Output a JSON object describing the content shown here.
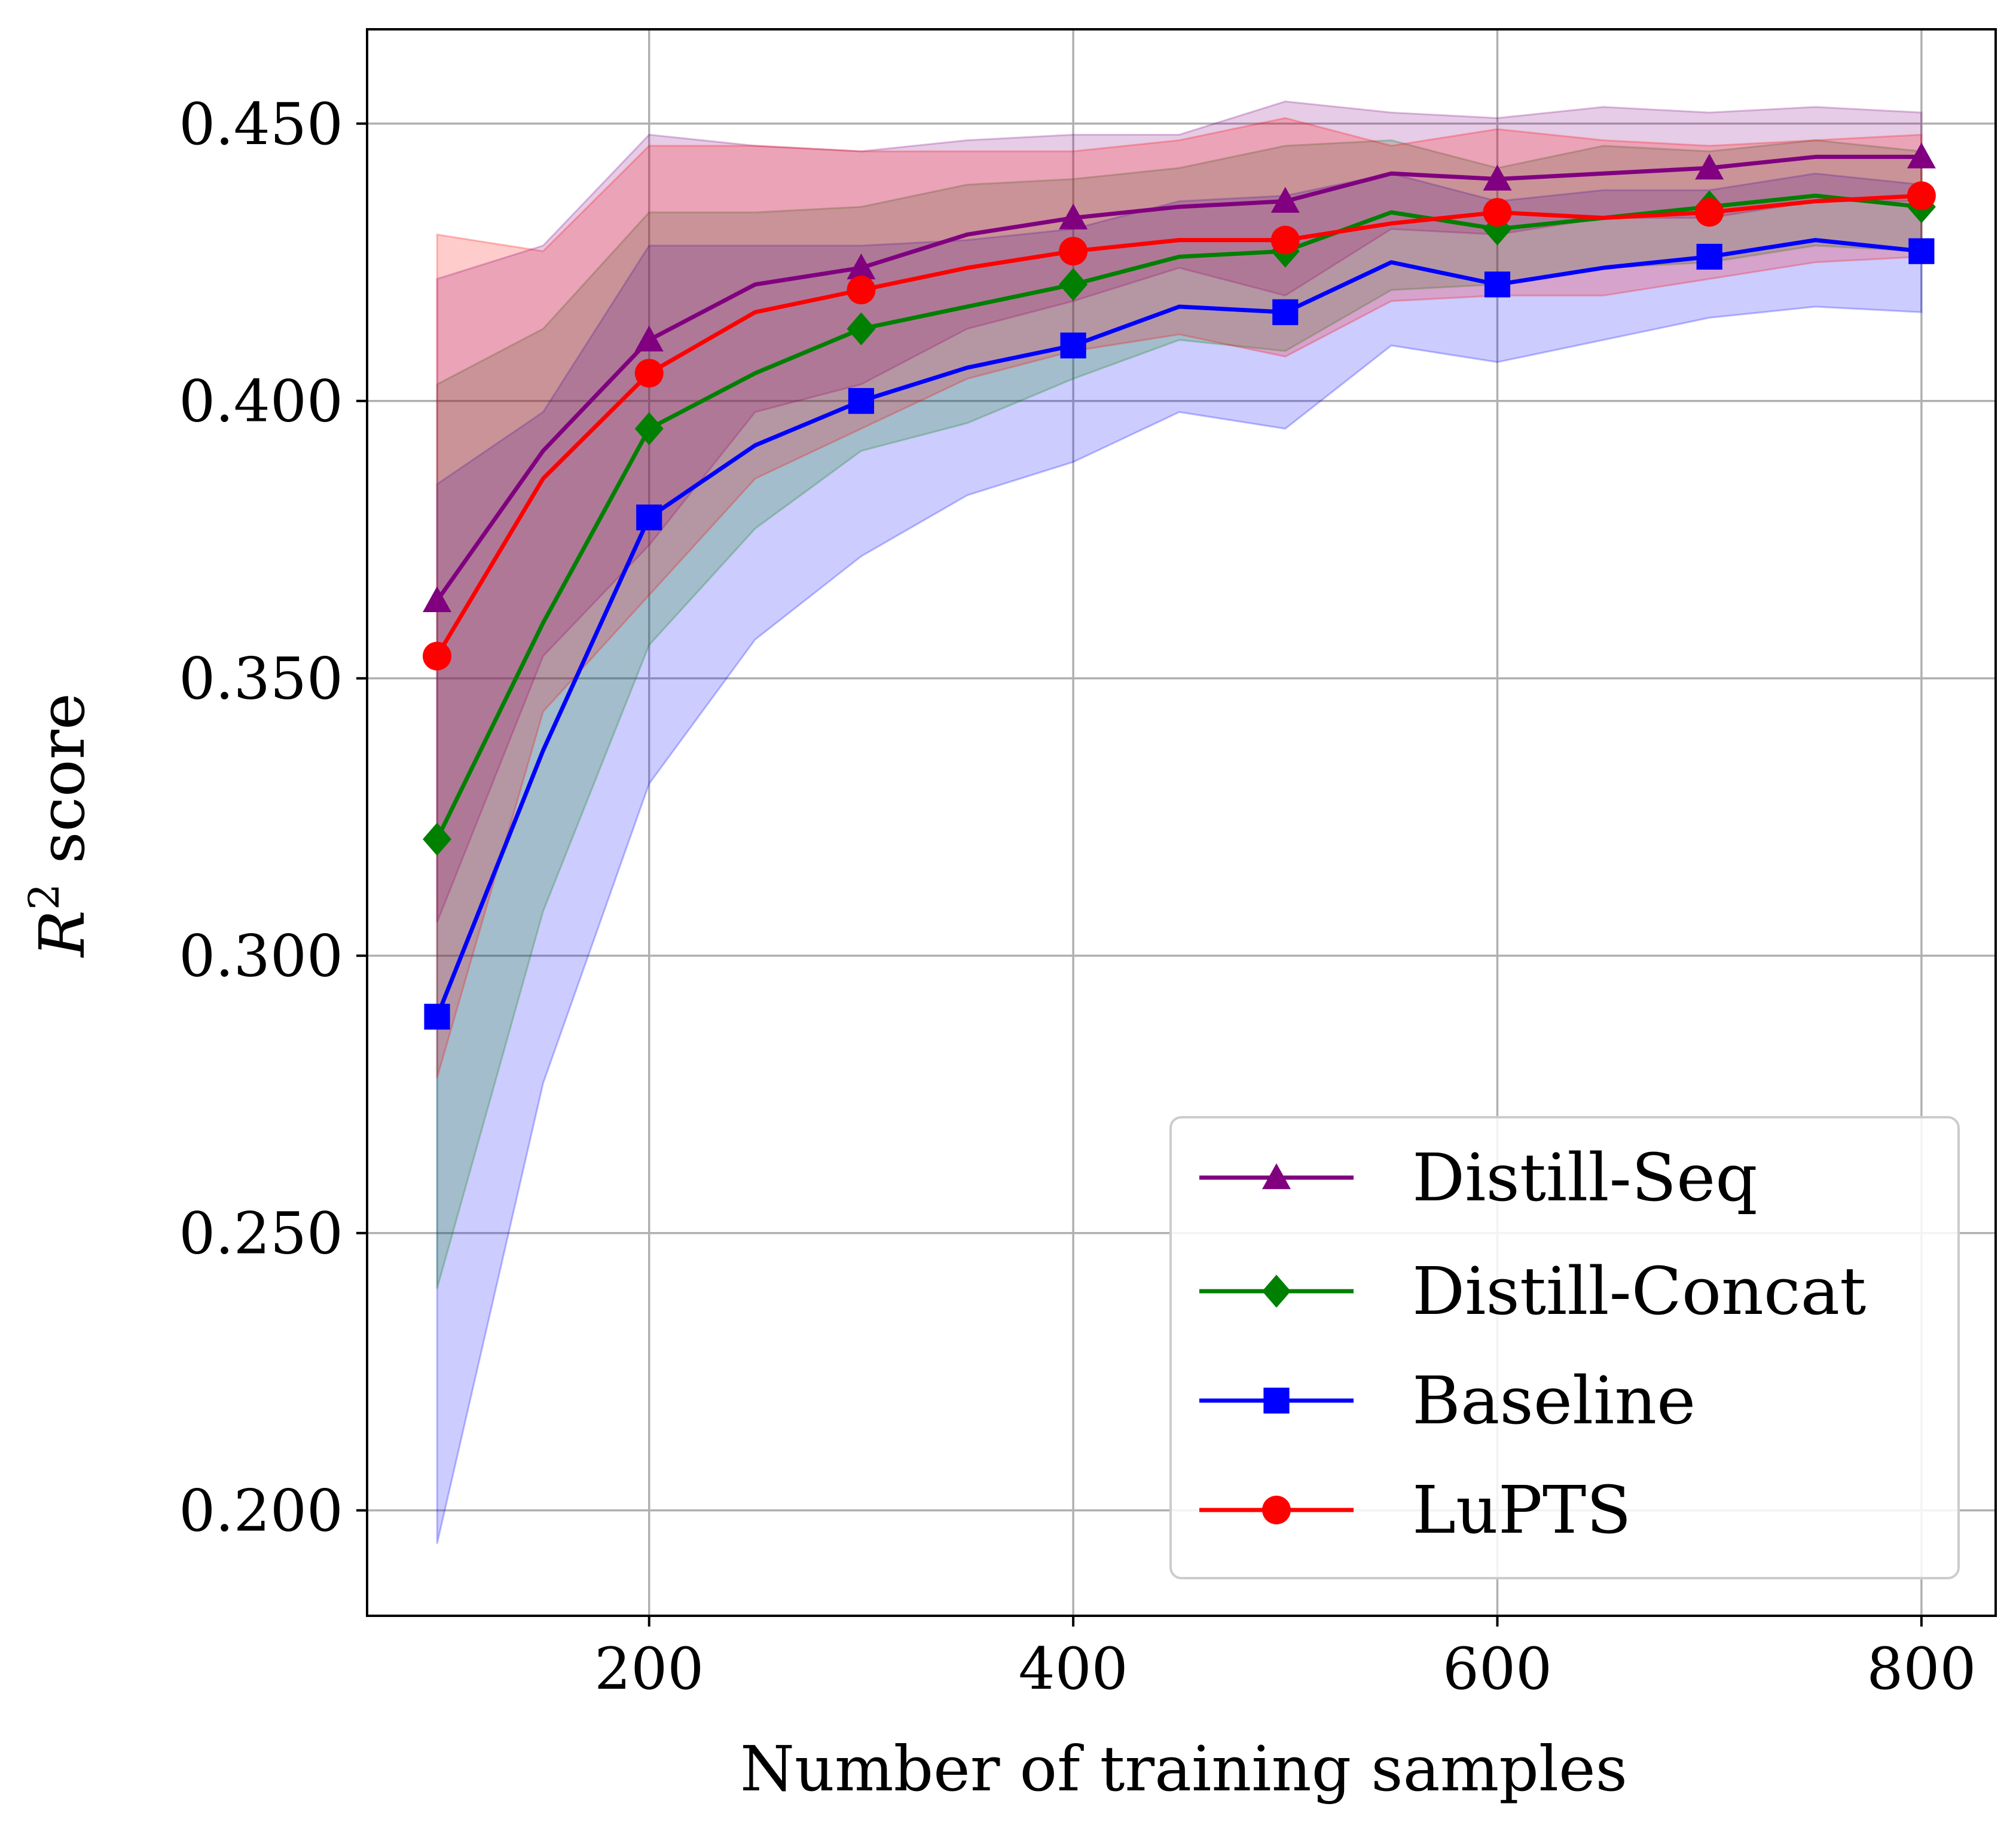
{
  "chart_data": {
    "type": "line",
    "xlabel": "Number of training samples",
    "ylabel_main": "R",
    "ylabel_sup": "2",
    "ylabel_rest": " score",
    "xlim": [
      67,
      835
    ],
    "ylim": [
      0.181,
      0.467
    ],
    "x_ticks": [
      200,
      400,
      600,
      800
    ],
    "y_ticks": [
      0.2,
      0.25,
      0.3,
      0.35,
      0.4,
      0.45
    ],
    "x_tick_labels": [
      "200",
      "400",
      "600",
      "800"
    ],
    "y_tick_labels": [
      "0.200",
      "0.250",
      "0.300",
      "0.350",
      "0.400",
      "0.450"
    ],
    "grid": true,
    "legend_position": "lower right",
    "x": [
      100,
      150,
      200,
      250,
      300,
      350,
      400,
      450,
      500,
      550,
      600,
      650,
      700,
      750,
      800
    ],
    "series": [
      {
        "name": "Distill-Seq",
        "color": "#800080",
        "marker": "triangle",
        "values": [
          0.364,
          0.391,
          0.411,
          0.421,
          0.424,
          0.43,
          0.433,
          0.435,
          0.436,
          0.441,
          0.44,
          0.441,
          0.442,
          0.444,
          0.444
        ],
        "lower": [
          0.306,
          0.354,
          0.374,
          0.398,
          0.403,
          0.413,
          0.418,
          0.424,
          0.419,
          0.431,
          0.43,
          0.433,
          0.433,
          0.436,
          0.436
        ],
        "upper": [
          0.422,
          0.428,
          0.448,
          0.446,
          0.445,
          0.447,
          0.448,
          0.448,
          0.454,
          0.452,
          0.451,
          0.453,
          0.452,
          0.453,
          0.452
        ]
      },
      {
        "name": "Distill-Concat",
        "color": "#008000",
        "marker": "diamond",
        "values": [
          0.321,
          0.36,
          0.395,
          0.405,
          0.413,
          0.417,
          0.421,
          0.426,
          0.427,
          0.434,
          0.431,
          0.433,
          0.435,
          0.437,
          0.435
        ],
        "lower": [
          0.24,
          0.308,
          0.356,
          0.377,
          0.391,
          0.396,
          0.404,
          0.411,
          0.409,
          0.42,
          0.421,
          0.424,
          0.425,
          0.428,
          0.427
        ],
        "upper": [
          0.403,
          0.413,
          0.434,
          0.434,
          0.435,
          0.439,
          0.44,
          0.442,
          0.446,
          0.447,
          0.442,
          0.446,
          0.445,
          0.447,
          0.445
        ]
      },
      {
        "name": "Baseline",
        "color": "#0000ff",
        "marker": "square",
        "values": [
          0.289,
          0.337,
          0.379,
          0.392,
          0.4,
          0.406,
          0.41,
          0.417,
          0.416,
          0.425,
          0.421,
          0.424,
          0.426,
          0.429,
          0.427
        ],
        "lower": [
          0.194,
          0.277,
          0.331,
          0.357,
          0.372,
          0.383,
          0.389,
          0.398,
          0.395,
          0.41,
          0.407,
          0.411,
          0.415,
          0.417,
          0.416
        ],
        "upper": [
          0.385,
          0.398,
          0.428,
          0.428,
          0.428,
          0.429,
          0.431,
          0.436,
          0.437,
          0.441,
          0.436,
          0.438,
          0.438,
          0.441,
          0.439
        ]
      },
      {
        "name": "LuPTS",
        "color": "#ff0000",
        "marker": "circle",
        "values": [
          0.354,
          0.386,
          0.405,
          0.416,
          0.42,
          0.424,
          0.427,
          0.429,
          0.429,
          0.432,
          0.434,
          0.433,
          0.434,
          0.436,
          0.437
        ],
        "lower": [
          0.278,
          0.344,
          0.365,
          0.386,
          0.395,
          0.404,
          0.409,
          0.412,
          0.408,
          0.418,
          0.419,
          0.419,
          0.422,
          0.425,
          0.426
        ],
        "upper": [
          0.43,
          0.427,
          0.446,
          0.446,
          0.445,
          0.445,
          0.445,
          0.447,
          0.451,
          0.446,
          0.449,
          0.447,
          0.446,
          0.447,
          0.448
        ]
      }
    ]
  }
}
